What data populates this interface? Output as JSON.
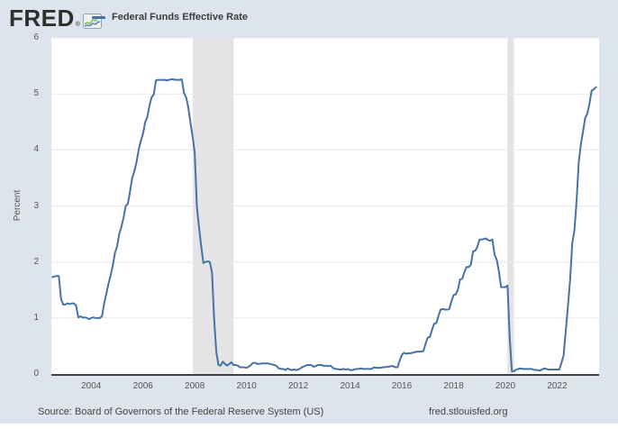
{
  "header": {
    "logo_text": "FRED",
    "registered_mark": "®",
    "legend_label": "Federal Funds Effective Rate"
  },
  "footer": {
    "source": "Source: Board of Governors of the Federal Reserve System (US)",
    "site": "fred.stlouisfed.org"
  },
  "colors": {
    "background": "#dde4ed",
    "plot_background": "#ffffff",
    "line": "#4572a7",
    "recession_band": "#e4e4e4",
    "gridline": "#e8e8e8",
    "axis": "#424242",
    "tick_text": "#555555"
  },
  "chart_data": {
    "type": "line",
    "title": "Federal Funds Effective Rate",
    "xlabel": "",
    "ylabel": "Percent",
    "ylim": [
      0,
      6
    ],
    "yticks": [
      0,
      1,
      2,
      3,
      4,
      5,
      6
    ],
    "xticks": [
      2004,
      2006,
      2008,
      2010,
      2012,
      2014,
      2016,
      2018,
      2020,
      2022
    ],
    "x_domain": [
      2002.46,
      2023.62
    ],
    "grid": "horizontal",
    "legend_position": "top-left",
    "line_color": "#4572a7",
    "recession_bands": [
      {
        "from": 2007.92,
        "to": 2009.5
      },
      {
        "from": 2020.08,
        "to": 2020.33
      }
    ],
    "series": [
      {
        "name": "Federal Funds Effective Rate",
        "units": "percent",
        "frequency": "monthly",
        "start": "2002-07",
        "end": "2023-07",
        "values": [
          1.73,
          1.74,
          1.75,
          1.75,
          1.34,
          1.24,
          1.24,
          1.26,
          1.25,
          1.26,
          1.26,
          1.22,
          1.01,
          1.03,
          1.01,
          1.01,
          1.0,
          0.98,
          1.0,
          1.01,
          1.0,
          1.0,
          1.0,
          1.03,
          1.26,
          1.43,
          1.61,
          1.76,
          1.93,
          2.16,
          2.28,
          2.5,
          2.63,
          2.79,
          3.0,
          3.04,
          3.26,
          3.5,
          3.62,
          3.78,
          4.0,
          4.16,
          4.29,
          4.49,
          4.59,
          4.79,
          4.94,
          4.99,
          5.24,
          5.25,
          5.25,
          5.25,
          5.25,
          5.24,
          5.25,
          5.26,
          5.26,
          5.25,
          5.25,
          5.25,
          5.26,
          5.02,
          4.94,
          4.76,
          4.49,
          4.24,
          3.94,
          2.98,
          2.61,
          2.28,
          1.98,
          2.0,
          2.01,
          2.0,
          1.81,
          0.97,
          0.39,
          0.16,
          0.15,
          0.22,
          0.18,
          0.15,
          0.18,
          0.21,
          0.16,
          0.16,
          0.15,
          0.12,
          0.12,
          0.12,
          0.11,
          0.13,
          0.16,
          0.2,
          0.2,
          0.18,
          0.18,
          0.19,
          0.19,
          0.19,
          0.19,
          0.18,
          0.17,
          0.16,
          0.14,
          0.1,
          0.09,
          0.09,
          0.07,
          0.1,
          0.08,
          0.07,
          0.08,
          0.07,
          0.08,
          0.1,
          0.13,
          0.14,
          0.16,
          0.16,
          0.16,
          0.13,
          0.14,
          0.16,
          0.16,
          0.16,
          0.14,
          0.15,
          0.14,
          0.15,
          0.11,
          0.09,
          0.09,
          0.08,
          0.08,
          0.09,
          0.08,
          0.09,
          0.07,
          0.07,
          0.08,
          0.09,
          0.09,
          0.1,
          0.09,
          0.09,
          0.09,
          0.09,
          0.09,
          0.12,
          0.11,
          0.11,
          0.11,
          0.12,
          0.12,
          0.13,
          0.13,
          0.14,
          0.14,
          0.12,
          0.12,
          0.24,
          0.34,
          0.38,
          0.36,
          0.37,
          0.37,
          0.38,
          0.39,
          0.4,
          0.4,
          0.4,
          0.41,
          0.54,
          0.65,
          0.66,
          0.79,
          0.9,
          0.91,
          1.04,
          1.15,
          1.16,
          1.15,
          1.15,
          1.16,
          1.3,
          1.41,
          1.42,
          1.51,
          1.69,
          1.7,
          1.82,
          1.91,
          1.91,
          1.95,
          2.19,
          2.2,
          2.27,
          2.4,
          2.4,
          2.41,
          2.42,
          2.39,
          2.38,
          2.4,
          2.13,
          2.04,
          1.83,
          1.55,
          1.55,
          1.55,
          1.58,
          0.65,
          0.05,
          0.05,
          0.08,
          0.09,
          0.1,
          0.09,
          0.09,
          0.09,
          0.09,
          0.09,
          0.08,
          0.07,
          0.07,
          0.06,
          0.08,
          0.1,
          0.09,
          0.08,
          0.08,
          0.08,
          0.08,
          0.08,
          0.08,
          0.2,
          0.33,
          0.77,
          1.21,
          1.68,
          2.33,
          2.56,
          3.08,
          3.78,
          4.1,
          4.33,
          4.57,
          4.65,
          4.83,
          5.06,
          5.08,
          5.12
        ]
      }
    ]
  }
}
